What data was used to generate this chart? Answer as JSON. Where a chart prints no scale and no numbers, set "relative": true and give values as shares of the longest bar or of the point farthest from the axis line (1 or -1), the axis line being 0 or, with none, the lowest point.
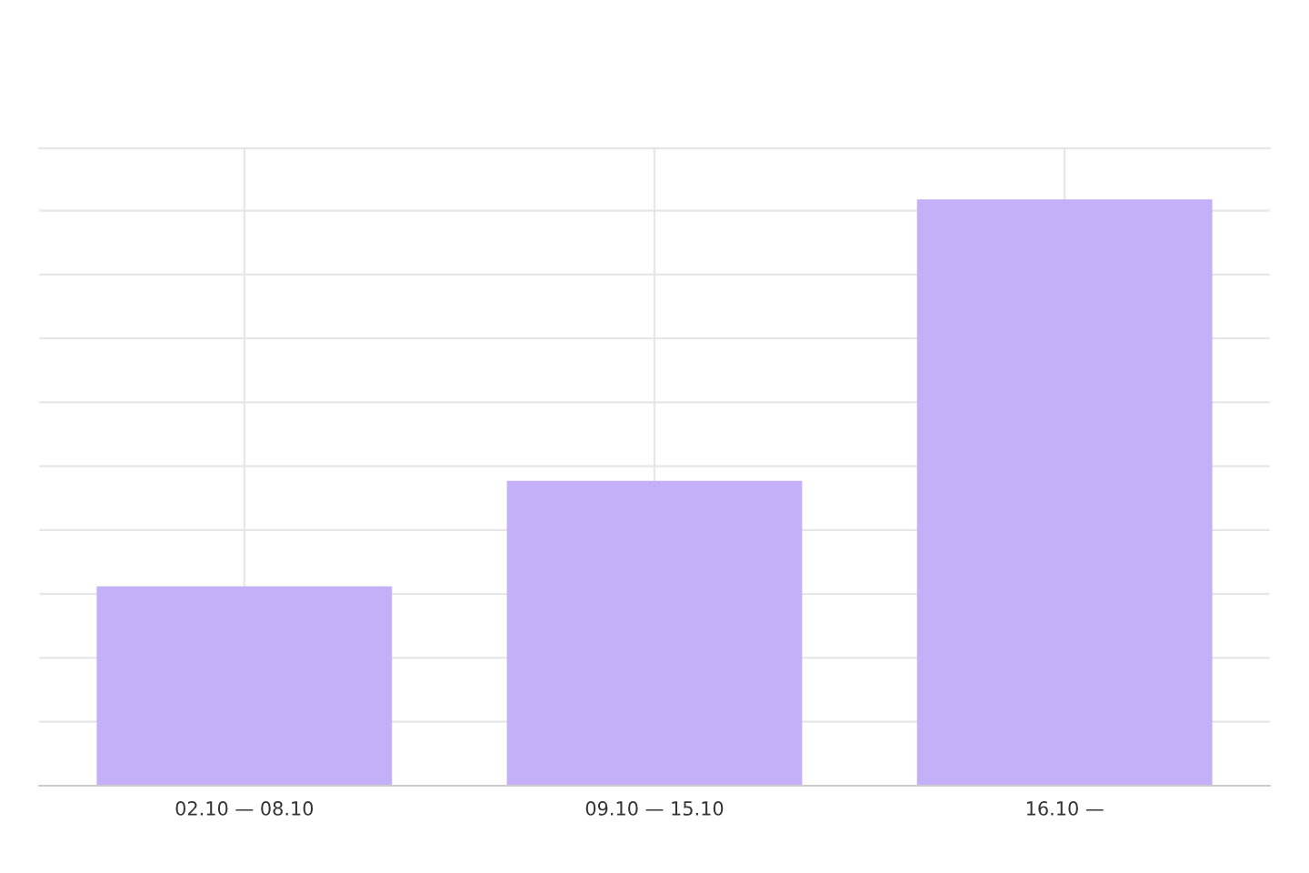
{
  "chart_data": {
    "type": "bar",
    "relative": true,
    "categories": [
      "02.10 — 08.10",
      "09.10 — 15.10",
      "16.10 —"
    ],
    "values": [
      0.34,
      0.52,
      1.0
    ],
    "color": "#c4b0f8",
    "grid": true
  }
}
